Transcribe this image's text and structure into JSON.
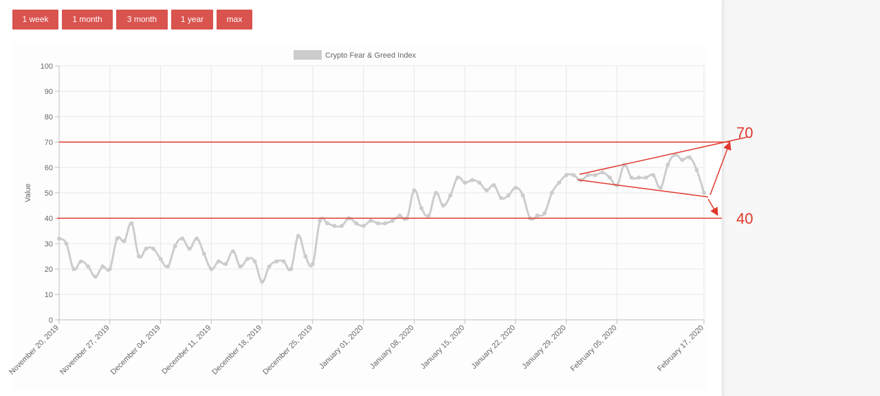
{
  "range_buttons": [
    "1 week",
    "1 month",
    "3 month",
    "1 year",
    "max"
  ],
  "colors": {
    "button_bg": "#d9534f",
    "series_line": "#cccccc",
    "annotation": "#e0382c",
    "grid": "#e6e6e6"
  },
  "chart_data": {
    "type": "line",
    "legend": {
      "label": "Crypto Fear & Greed Index",
      "position": "top-center"
    },
    "ylabel": "Value",
    "xlabel": "",
    "ylim": [
      0,
      100
    ],
    "yticks": [
      0,
      10,
      20,
      30,
      40,
      50,
      60,
      70,
      80,
      90,
      100
    ],
    "xticks": [
      "November 20, 2019",
      "November 27, 2019",
      "December 04, 2019",
      "December 11, 2019",
      "December 18, 2019",
      "December 25, 2019",
      "January 01, 2020",
      "January 08, 2020",
      "January 15, 2020",
      "January 22, 2020",
      "January 29, 2020",
      "February 05, 2020",
      "February 17, 2020"
    ],
    "grid": true,
    "series": [
      {
        "x": [
          "2019-11-20",
          "2019-11-21",
          "2019-11-22",
          "2019-11-23",
          "2019-11-24",
          "2019-11-25",
          "2019-11-26",
          "2019-11-27",
          "2019-11-28",
          "2019-11-29",
          "2019-11-30",
          "2019-12-01",
          "2019-12-02",
          "2019-12-03",
          "2019-12-04",
          "2019-12-05",
          "2019-12-06",
          "2019-12-07",
          "2019-12-08",
          "2019-12-09",
          "2019-12-10",
          "2019-12-11",
          "2019-12-12",
          "2019-12-13",
          "2019-12-14",
          "2019-12-15",
          "2019-12-16",
          "2019-12-17",
          "2019-12-18",
          "2019-12-19",
          "2019-12-20",
          "2019-12-21",
          "2019-12-22",
          "2019-12-23",
          "2019-12-24",
          "2019-12-25",
          "2019-12-26",
          "2019-12-27",
          "2019-12-28",
          "2019-12-29",
          "2019-12-30",
          "2019-12-31",
          "2020-01-01",
          "2020-01-02",
          "2020-01-03",
          "2020-01-04",
          "2020-01-05",
          "2020-01-06",
          "2020-01-07",
          "2020-01-08",
          "2020-01-09",
          "2020-01-10",
          "2020-01-11",
          "2020-01-12",
          "2020-01-13",
          "2020-01-14",
          "2020-01-15",
          "2020-01-16",
          "2020-01-17",
          "2020-01-18",
          "2020-01-19",
          "2020-01-20",
          "2020-01-21",
          "2020-01-22",
          "2020-01-23",
          "2020-01-24",
          "2020-01-25",
          "2020-01-26",
          "2020-01-27",
          "2020-01-28",
          "2020-01-29",
          "2020-01-30",
          "2020-01-31",
          "2020-02-01",
          "2020-02-02",
          "2020-02-03",
          "2020-02-04",
          "2020-02-05",
          "2020-02-06",
          "2020-02-07",
          "2020-02-08",
          "2020-02-09",
          "2020-02-10",
          "2020-02-11",
          "2020-02-12",
          "2020-02-13",
          "2020-02-14",
          "2020-02-15",
          "2020-02-16",
          "2020-02-17"
        ],
        "values": [
          32,
          30,
          20,
          23,
          21,
          17,
          21,
          20,
          32,
          31,
          38,
          25,
          28,
          28,
          24,
          21,
          29,
          32,
          28,
          32,
          26,
          20,
          23,
          22,
          27,
          21,
          24,
          23,
          15,
          21,
          23,
          23,
          20,
          33,
          25,
          22,
          39,
          38,
          37,
          37,
          40,
          38,
          37,
          39,
          38,
          38,
          39,
          41,
          40,
          51,
          44,
          41,
          50,
          45,
          49,
          56,
          54,
          55,
          54,
          51,
          53,
          48,
          49,
          52,
          49,
          40,
          41,
          42,
          50,
          54,
          57,
          57,
          55,
          57,
          57,
          58,
          56,
          53,
          61,
          56,
          56,
          56,
          57,
          52,
          61,
          65,
          63,
          64,
          59,
          50
        ]
      }
    ],
    "annotations": {
      "hlines": [
        70,
        40
      ],
      "labels": [
        "70",
        "40"
      ]
    }
  }
}
